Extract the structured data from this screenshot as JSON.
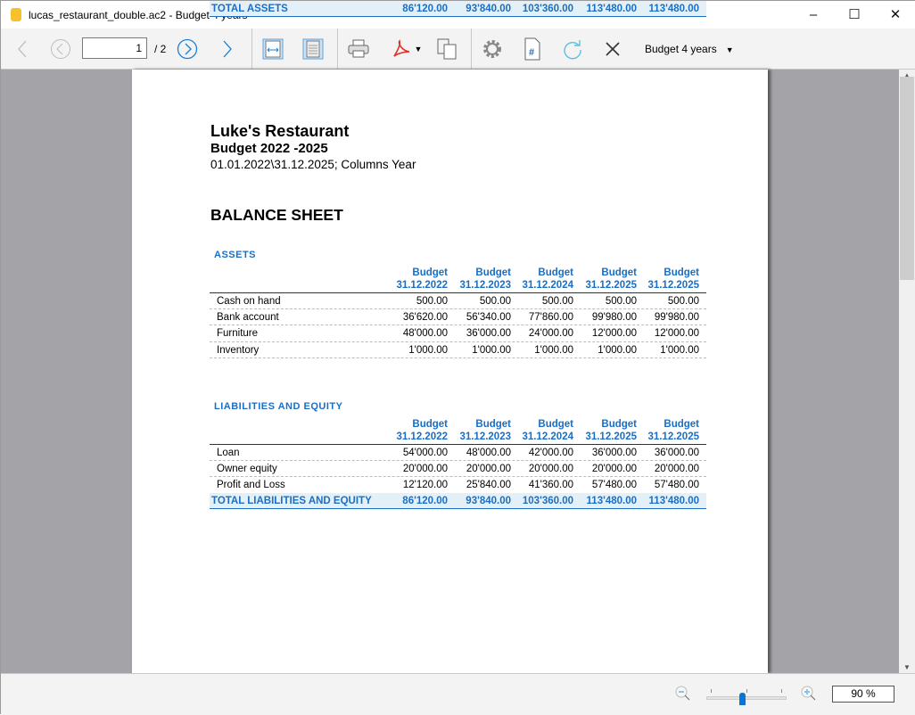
{
  "window": {
    "title": "lucas_restaurant_double.ac2 - Budget 4 years",
    "minimize": "–",
    "maximize": "☐",
    "close": "✕"
  },
  "toolbar": {
    "page_current": "1",
    "page_total": "/ 2",
    "report_select": "Budget 4 years"
  },
  "report": {
    "company": "Luke's Restaurant",
    "subtitle": "Budget 2022 -2025",
    "period": "01.01.2022\\31.12.2025; Columns Year",
    "heading": "BALANCE SHEET",
    "columns": [
      {
        "l1": "Budget",
        "l2": "31.12.2022"
      },
      {
        "l1": "Budget",
        "l2": "31.12.2023"
      },
      {
        "l1": "Budget",
        "l2": "31.12.2024"
      },
      {
        "l1": "Budget",
        "l2": "31.12.2025"
      },
      {
        "l1": "Budget",
        "l2": "31.12.2025"
      }
    ],
    "sections": [
      {
        "title": "ASSETS",
        "rows": [
          {
            "label": "Cash on hand",
            "values": [
              "500.00",
              "500.00",
              "500.00",
              "500.00",
              "500.00"
            ]
          },
          {
            "label": "Bank account",
            "values": [
              "36'620.00",
              "56'340.00",
              "77'860.00",
              "99'980.00",
              "99'980.00"
            ]
          },
          {
            "label": "Furniture",
            "values": [
              "48'000.00",
              "36'000.00",
              "24'000.00",
              "12'000.00",
              "12'000.00"
            ]
          },
          {
            "label": "Inventory",
            "values": [
              "1'000.00",
              "1'000.00",
              "1'000.00",
              "1'000.00",
              "1'000.00"
            ]
          }
        ],
        "total": {
          "label": "TOTAL ASSETS",
          "values": [
            "86'120.00",
            "93'840.00",
            "103'360.00",
            "113'480.00",
            "113'480.00"
          ]
        }
      },
      {
        "title": "LIABILITIES AND EQUITY",
        "rows": [
          {
            "label": "Loan",
            "values": [
              "54'000.00",
              "48'000.00",
              "42'000.00",
              "36'000.00",
              "36'000.00"
            ]
          },
          {
            "label": "Owner equity",
            "values": [
              "20'000.00",
              "20'000.00",
              "20'000.00",
              "20'000.00",
              "20'000.00"
            ]
          },
          {
            "label": "Profit and Loss",
            "values": [
              "12'120.00",
              "25'840.00",
              "41'360.00",
              "57'480.00",
              "57'480.00"
            ]
          }
        ],
        "total": {
          "label": "TOTAL LIABILITIES AND EQUITY",
          "values": [
            "86'120.00",
            "93'840.00",
            "103'360.00",
            "113'480.00",
            "113'480.00"
          ]
        }
      }
    ]
  },
  "statusbar": {
    "zoom_value": "90  %",
    "zoom_slider_percent": 90
  },
  "colors": {
    "accent": "#1a6fc4",
    "total_bg": "#e3f0f7"
  }
}
